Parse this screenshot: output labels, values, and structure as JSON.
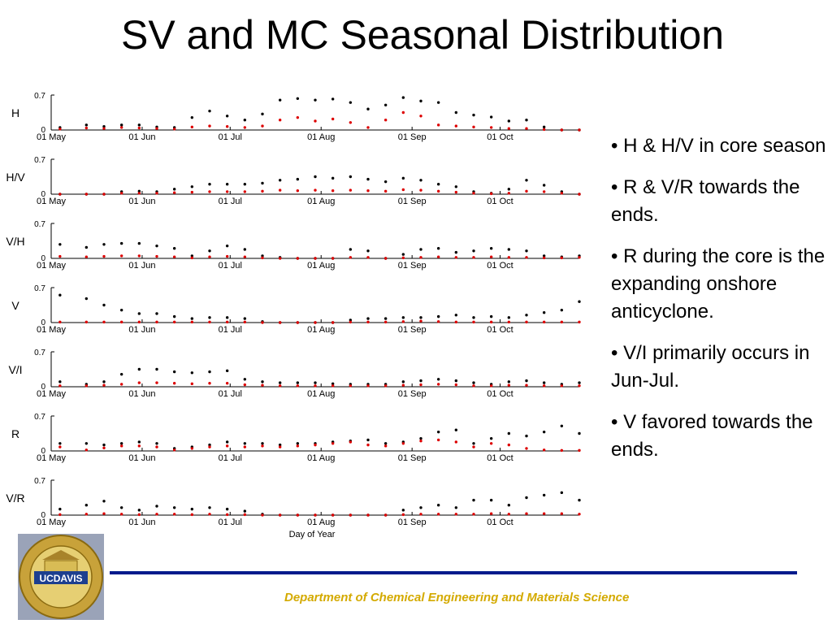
{
  "title": "SV and MC Seasonal Distribution",
  "bullets": [
    "• H & H/V in core season",
    "• R & V/R towards the ends.",
    "• R during the core is the expanding onshore anticyclone.",
    "• V/I primarily occurs in Jun-Jul.",
    "• V favored towards the ends."
  ],
  "footer": {
    "department": "Department of Chemical Engineering and Materials Science"
  },
  "logo": {
    "text": "UCDAVIS",
    "ring_text": "THE UNIVERSITY OF CALIFORNIA",
    "colors": {
      "gold": "#c8a23a",
      "blue": "#1d3f8f"
    }
  },
  "colors": {
    "series_black": "#000000",
    "series_red": "#dd0000",
    "footer_rule": "#001a8c",
    "footer_text": "#d4aa00"
  },
  "chart_data": [
    {
      "type": "scatter",
      "panel_label": "H",
      "ylim": [
        0,
        0.7
      ],
      "y_ticks": [
        "0",
        "0.7"
      ],
      "x_ticks": [
        "01 May",
        "01 Jun",
        "01 Jul",
        "01 Aug",
        "01 Sep",
        "01 Oct"
      ],
      "xlim_days": [
        0,
        180
      ],
      "series": [
        {
          "color": "black",
          "x": [
            3,
            12,
            18,
            24,
            30,
            36,
            42,
            48,
            54,
            60,
            66,
            72,
            78,
            84,
            90,
            96,
            102,
            108,
            114,
            120,
            126,
            132,
            138,
            144,
            150,
            156,
            162,
            168,
            174,
            180
          ],
          "y": [
            0.05,
            0.1,
            0.07,
            0.1,
            0.1,
            0.06,
            0.05,
            0.25,
            0.38,
            0.28,
            0.2,
            0.32,
            0.6,
            0.63,
            0.6,
            0.62,
            0.55,
            0.42,
            0.5,
            0.65,
            0.58,
            0.55,
            0.35,
            0.3,
            0.26,
            0.18,
            0.2,
            0.06,
            0.0,
            0.0
          ]
        },
        {
          "color": "red",
          "x": [
            3,
            12,
            18,
            24,
            30,
            36,
            42,
            48,
            54,
            60,
            66,
            72,
            78,
            84,
            90,
            96,
            102,
            108,
            114,
            120,
            126,
            132,
            138,
            144,
            150,
            156,
            162,
            168,
            174,
            180
          ],
          "y": [
            0.02,
            0.04,
            0.03,
            0.05,
            0.04,
            0.03,
            0.02,
            0.06,
            0.08,
            0.07,
            0.05,
            0.08,
            0.2,
            0.25,
            0.18,
            0.22,
            0.15,
            0.05,
            0.2,
            0.35,
            0.28,
            0.1,
            0.08,
            0.06,
            0.05,
            0.03,
            0.03,
            0.01,
            0.0,
            0.0
          ]
        }
      ]
    },
    {
      "type": "scatter",
      "panel_label": "H/V",
      "ylim": [
        0,
        0.7
      ],
      "y_ticks": [
        "0",
        "0.7"
      ],
      "x_ticks": [
        "01 May",
        "01 Jun",
        "01 Jul",
        "01 Aug",
        "01 Sep",
        "01 Oct"
      ],
      "xlim_days": [
        0,
        180
      ],
      "series": [
        {
          "color": "black",
          "x": [
            3,
            12,
            18,
            24,
            30,
            36,
            42,
            48,
            54,
            60,
            66,
            72,
            78,
            84,
            90,
            96,
            102,
            108,
            114,
            120,
            126,
            132,
            138,
            144,
            150,
            156,
            162,
            168,
            174,
            180
          ],
          "y": [
            0.0,
            0.0,
            0.0,
            0.05,
            0.06,
            0.05,
            0.1,
            0.15,
            0.2,
            0.2,
            0.2,
            0.22,
            0.28,
            0.3,
            0.35,
            0.32,
            0.35,
            0.3,
            0.25,
            0.32,
            0.28,
            0.2,
            0.15,
            0.05,
            0.02,
            0.1,
            0.28,
            0.18,
            0.05,
            0.0
          ]
        },
        {
          "color": "red",
          "x": [
            3,
            12,
            18,
            24,
            30,
            36,
            42,
            48,
            54,
            60,
            66,
            72,
            78,
            84,
            90,
            96,
            102,
            108,
            114,
            120,
            126,
            132,
            138,
            144,
            150,
            156,
            162,
            168,
            174,
            180
          ],
          "y": [
            0.0,
            0.0,
            0.0,
            0.02,
            0.02,
            0.02,
            0.03,
            0.04,
            0.05,
            0.05,
            0.05,
            0.06,
            0.08,
            0.07,
            0.08,
            0.07,
            0.08,
            0.07,
            0.06,
            0.09,
            0.08,
            0.06,
            0.04,
            0.02,
            0.01,
            0.02,
            0.06,
            0.05,
            0.02,
            0.0
          ]
        }
      ]
    },
    {
      "type": "scatter",
      "panel_label": "V/H",
      "ylim": [
        0,
        0.7
      ],
      "y_ticks": [
        "0",
        "0.7"
      ],
      "x_ticks": [
        "01 May",
        "01 Jun",
        "01 Jul",
        "01 Aug",
        "01 Sep",
        "01 Oct"
      ],
      "xlim_days": [
        0,
        180
      ],
      "series": [
        {
          "color": "black",
          "x": [
            3,
            12,
            18,
            24,
            30,
            36,
            42,
            48,
            54,
            60,
            66,
            72,
            78,
            84,
            90,
            96,
            102,
            108,
            114,
            120,
            126,
            132,
            138,
            144,
            150,
            156,
            162,
            168,
            174,
            180
          ],
          "y": [
            0.28,
            0.22,
            0.28,
            0.3,
            0.3,
            0.25,
            0.2,
            0.05,
            0.15,
            0.25,
            0.18,
            0.05,
            0.02,
            0.0,
            0.0,
            0.0,
            0.18,
            0.15,
            0.0,
            0.08,
            0.18,
            0.2,
            0.12,
            0.15,
            0.2,
            0.18,
            0.15,
            0.05,
            0.03,
            0.05
          ]
        },
        {
          "color": "red",
          "x": [
            3,
            12,
            18,
            24,
            30,
            36,
            42,
            48,
            54,
            60,
            66,
            72,
            78,
            84,
            90,
            96,
            102,
            108,
            114,
            120,
            126,
            132,
            138,
            144,
            150,
            156,
            162,
            168,
            174,
            180
          ],
          "y": [
            0.04,
            0.03,
            0.04,
            0.05,
            0.05,
            0.04,
            0.03,
            0.01,
            0.03,
            0.04,
            0.03,
            0.01,
            0.0,
            0.0,
            0.0,
            0.0,
            0.02,
            0.02,
            0.0,
            0.01,
            0.02,
            0.03,
            0.02,
            0.02,
            0.03,
            0.02,
            0.02,
            0.01,
            0.01,
            0.02
          ]
        }
      ]
    },
    {
      "type": "scatter",
      "panel_label": "V",
      "ylim": [
        0,
        0.7
      ],
      "y_ticks": [
        "0",
        "0.7"
      ],
      "x_ticks": [
        "01 May",
        "01 Jun",
        "01 Jul",
        "01 Aug",
        "01 Sep",
        "01 Oct"
      ],
      "xlim_days": [
        0,
        180
      ],
      "series": [
        {
          "color": "black",
          "x": [
            3,
            12,
            18,
            24,
            30,
            36,
            42,
            48,
            54,
            60,
            66,
            72,
            78,
            84,
            90,
            96,
            102,
            108,
            114,
            120,
            126,
            132,
            138,
            144,
            150,
            156,
            162,
            168,
            174,
            180
          ],
          "y": [
            0.55,
            0.48,
            0.35,
            0.25,
            0.18,
            0.18,
            0.12,
            0.08,
            0.1,
            0.1,
            0.08,
            0.02,
            0.0,
            0.0,
            0.0,
            0.0,
            0.05,
            0.08,
            0.08,
            0.1,
            0.1,
            0.12,
            0.15,
            0.1,
            0.12,
            0.1,
            0.15,
            0.2,
            0.25,
            0.42
          ]
        },
        {
          "color": "red",
          "x": [
            3,
            12,
            18,
            24,
            30,
            36,
            42,
            48,
            54,
            60,
            66,
            72,
            78,
            84,
            90,
            96,
            102,
            108,
            114,
            120,
            126,
            132,
            138,
            144,
            150,
            156,
            162,
            168,
            174,
            180
          ],
          "y": [
            0.01,
            0.01,
            0.01,
            0.01,
            0.01,
            0.01,
            0.01,
            0.01,
            0.01,
            0.01,
            0.01,
            0.0,
            0.0,
            0.0,
            0.0,
            0.0,
            0.01,
            0.01,
            0.01,
            0.02,
            0.03,
            0.02,
            0.01,
            0.01,
            0.01,
            0.01,
            0.01,
            0.01,
            0.01,
            0.01
          ]
        }
      ]
    },
    {
      "type": "scatter",
      "panel_label": "V/I",
      "ylim": [
        0,
        0.7
      ],
      "y_ticks": [
        "0",
        "0.7"
      ],
      "x_ticks": [
        "01 May",
        "01 Jun",
        "01 Jul",
        "01 Aug",
        "01 Sep",
        "01 Oct"
      ],
      "xlim_days": [
        0,
        180
      ],
      "series": [
        {
          "color": "black",
          "x": [
            3,
            12,
            18,
            24,
            30,
            36,
            42,
            48,
            54,
            60,
            66,
            72,
            78,
            84,
            90,
            96,
            102,
            108,
            114,
            120,
            126,
            132,
            138,
            144,
            150,
            156,
            162,
            168,
            174,
            180
          ],
          "y": [
            0.1,
            0.05,
            0.1,
            0.25,
            0.35,
            0.35,
            0.3,
            0.28,
            0.3,
            0.32,
            0.15,
            0.1,
            0.08,
            0.08,
            0.08,
            0.06,
            0.05,
            0.05,
            0.05,
            0.1,
            0.12,
            0.15,
            0.12,
            0.08,
            0.05,
            0.1,
            0.12,
            0.08,
            0.05,
            0.08
          ]
        },
        {
          "color": "red",
          "x": [
            3,
            12,
            18,
            24,
            30,
            36,
            42,
            48,
            54,
            60,
            66,
            72,
            78,
            84,
            90,
            96,
            102,
            108,
            114,
            120,
            126,
            132,
            138,
            144,
            150,
            156,
            162,
            168,
            174,
            180
          ],
          "y": [
            0.02,
            0.02,
            0.03,
            0.05,
            0.08,
            0.08,
            0.07,
            0.06,
            0.07,
            0.07,
            0.04,
            0.03,
            0.02,
            0.02,
            0.02,
            0.02,
            0.02,
            0.02,
            0.02,
            0.03,
            0.04,
            0.05,
            0.04,
            0.02,
            0.02,
            0.03,
            0.03,
            0.02,
            0.02,
            0.02
          ]
        }
      ]
    },
    {
      "type": "scatter",
      "panel_label": "R",
      "ylim": [
        0,
        0.7
      ],
      "y_ticks": [
        "0",
        "0.7"
      ],
      "x_ticks": [
        "01 May",
        "01 Jun",
        "01 Jul",
        "01 Aug",
        "01 Sep",
        "01 Oct"
      ],
      "xlim_days": [
        0,
        180
      ],
      "series": [
        {
          "color": "black",
          "x": [
            3,
            12,
            18,
            24,
            30,
            36,
            42,
            48,
            54,
            60,
            66,
            72,
            78,
            84,
            90,
            96,
            102,
            108,
            114,
            120,
            126,
            132,
            138,
            144,
            150,
            156,
            162,
            168,
            174,
            180
          ],
          "y": [
            0.15,
            0.15,
            0.12,
            0.15,
            0.18,
            0.15,
            0.05,
            0.08,
            0.12,
            0.18,
            0.15,
            0.15,
            0.12,
            0.15,
            0.15,
            0.18,
            0.2,
            0.22,
            0.15,
            0.18,
            0.25,
            0.38,
            0.42,
            0.15,
            0.25,
            0.35,
            0.3,
            0.38,
            0.5,
            0.35
          ]
        },
        {
          "color": "red",
          "x": [
            3,
            12,
            18,
            24,
            30,
            36,
            42,
            48,
            54,
            60,
            66,
            72,
            78,
            84,
            90,
            96,
            102,
            108,
            114,
            120,
            126,
            132,
            138,
            144,
            150,
            156,
            162,
            168,
            174,
            180
          ],
          "y": [
            0.08,
            0.02,
            0.06,
            0.1,
            0.1,
            0.08,
            0.02,
            0.05,
            0.08,
            0.1,
            0.08,
            0.1,
            0.08,
            0.1,
            0.12,
            0.15,
            0.18,
            0.12,
            0.1,
            0.15,
            0.2,
            0.22,
            0.18,
            0.08,
            0.15,
            0.12,
            0.05,
            0.02,
            0.01,
            0.01
          ]
        }
      ]
    },
    {
      "type": "scatter",
      "panel_label": "V/R",
      "ylim": [
        0,
        0.7
      ],
      "y_ticks": [
        "0",
        "0.7"
      ],
      "x_ticks": [
        "01 May",
        "01 Jun",
        "01 Jul",
        "01 Aug",
        "01 Sep",
        "01 Oct"
      ],
      "xlim_days": [
        0,
        180
      ],
      "xlabel": "Day of Year",
      "series": [
        {
          "color": "black",
          "x": [
            3,
            12,
            18,
            24,
            30,
            36,
            42,
            48,
            54,
            60,
            66,
            72,
            78,
            84,
            90,
            96,
            102,
            108,
            114,
            120,
            126,
            132,
            138,
            144,
            150,
            156,
            162,
            168,
            174,
            180
          ],
          "y": [
            0.12,
            0.2,
            0.28,
            0.15,
            0.1,
            0.18,
            0.15,
            0.12,
            0.15,
            0.12,
            0.08,
            0.02,
            0.0,
            0.0,
            0.0,
            0.0,
            0.0,
            0.0,
            0.0,
            0.1,
            0.15,
            0.2,
            0.15,
            0.3,
            0.3,
            0.2,
            0.35,
            0.4,
            0.45,
            0.3
          ]
        },
        {
          "color": "red",
          "x": [
            3,
            12,
            18,
            24,
            30,
            36,
            42,
            48,
            54,
            60,
            66,
            72,
            78,
            84,
            90,
            96,
            102,
            108,
            114,
            120,
            126,
            132,
            138,
            144,
            150,
            156,
            162,
            168,
            174,
            180
          ],
          "y": [
            0.01,
            0.02,
            0.03,
            0.02,
            0.01,
            0.02,
            0.02,
            0.01,
            0.02,
            0.01,
            0.01,
            0.0,
            0.0,
            0.0,
            0.0,
            0.0,
            0.0,
            0.0,
            0.0,
            0.01,
            0.02,
            0.02,
            0.02,
            0.02,
            0.03,
            0.02,
            0.03,
            0.03,
            0.03,
            0.02
          ]
        }
      ]
    }
  ]
}
